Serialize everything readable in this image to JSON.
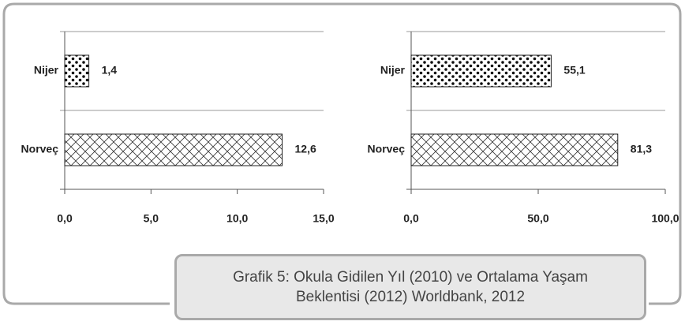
{
  "chart_data": [
    {
      "type": "bar",
      "orientation": "horizontal",
      "categories": [
        "Nijer",
        "Norveç"
      ],
      "values": [
        1.4,
        12.6
      ],
      "value_labels": [
        "1,4",
        "12,6"
      ],
      "xlim": [
        0,
        15
      ],
      "xticks": [
        {
          "value": 0,
          "label": "0,0"
        },
        {
          "value": 5,
          "label": "5,0"
        },
        {
          "value": 10,
          "label": "10,0"
        },
        {
          "value": 15,
          "label": "15,0"
        }
      ]
    },
    {
      "type": "bar",
      "orientation": "horizontal",
      "categories": [
        "Nijer",
        "Norveç"
      ],
      "values": [
        55.1,
        81.3
      ],
      "value_labels": [
        "55,1",
        "81,3"
      ],
      "xlim": [
        0,
        100
      ],
      "xticks": [
        {
          "value": 0,
          "label": "0,0"
        },
        {
          "value": 50,
          "label": "50,0"
        },
        {
          "value": 100,
          "label": "100,0"
        }
      ]
    }
  ],
  "caption": "Grafik 5: Okula Gidilen Yıl (2010) ve Ortalama Yaşam Beklentisi (2012) Worldbank, 2012"
}
